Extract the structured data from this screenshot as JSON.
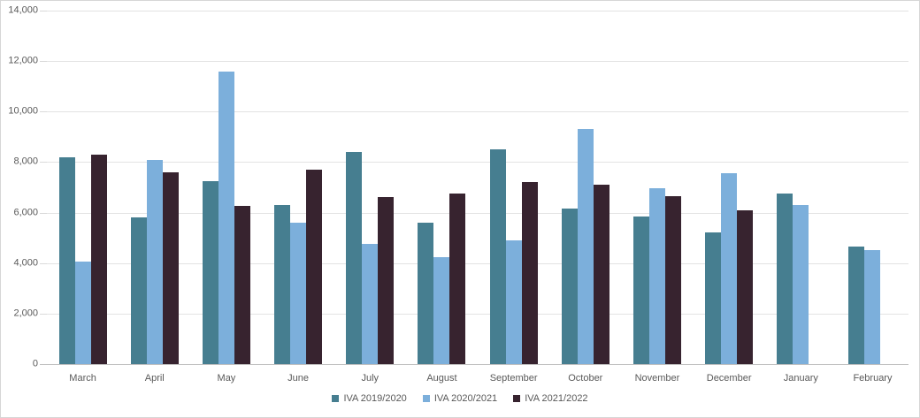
{
  "chart_data": {
    "type": "bar",
    "title": "",
    "xlabel": "",
    "ylabel": "",
    "categories": [
      "March",
      "April",
      "May",
      "June",
      "July",
      "August",
      "September",
      "October",
      "November",
      "December",
      "January",
      "February"
    ],
    "series": [
      {
        "name": "IVA 2019/2020",
        "color": "#467E90",
        "values": [
          8200,
          5800,
          7250,
          6300,
          8400,
          5600,
          8500,
          6150,
          5850,
          5200,
          6750,
          4650
        ]
      },
      {
        "name": "IVA 2020/2021",
        "color": "#7CAFDB",
        "values": [
          4050,
          8100,
          11600,
          5600,
          4750,
          4250,
          4900,
          9300,
          6950,
          7550,
          6300,
          4500
        ]
      },
      {
        "name": "IVA 2021/2022",
        "color": "#37232F",
        "values": [
          8300,
          7600,
          6250,
          7700,
          6600,
          6750,
          7200,
          7100,
          6650,
          6100,
          null,
          null
        ]
      }
    ],
    "ylim": [
      0,
      14000
    ],
    "ytick_step": 2000,
    "y_tick_labels": [
      "0",
      "2,000",
      "4,000",
      "6,000",
      "8,000",
      "10,000",
      "12,000",
      "14,000"
    ],
    "grid": true,
    "legend_position": "bottom"
  },
  "colors": {
    "background": "#FFFFFF",
    "border": "#D6D6D6",
    "gridline": "#E3E3E3",
    "axis_line": "#C0C0C0",
    "tick": "#D9D9D9",
    "text": "#595959"
  }
}
